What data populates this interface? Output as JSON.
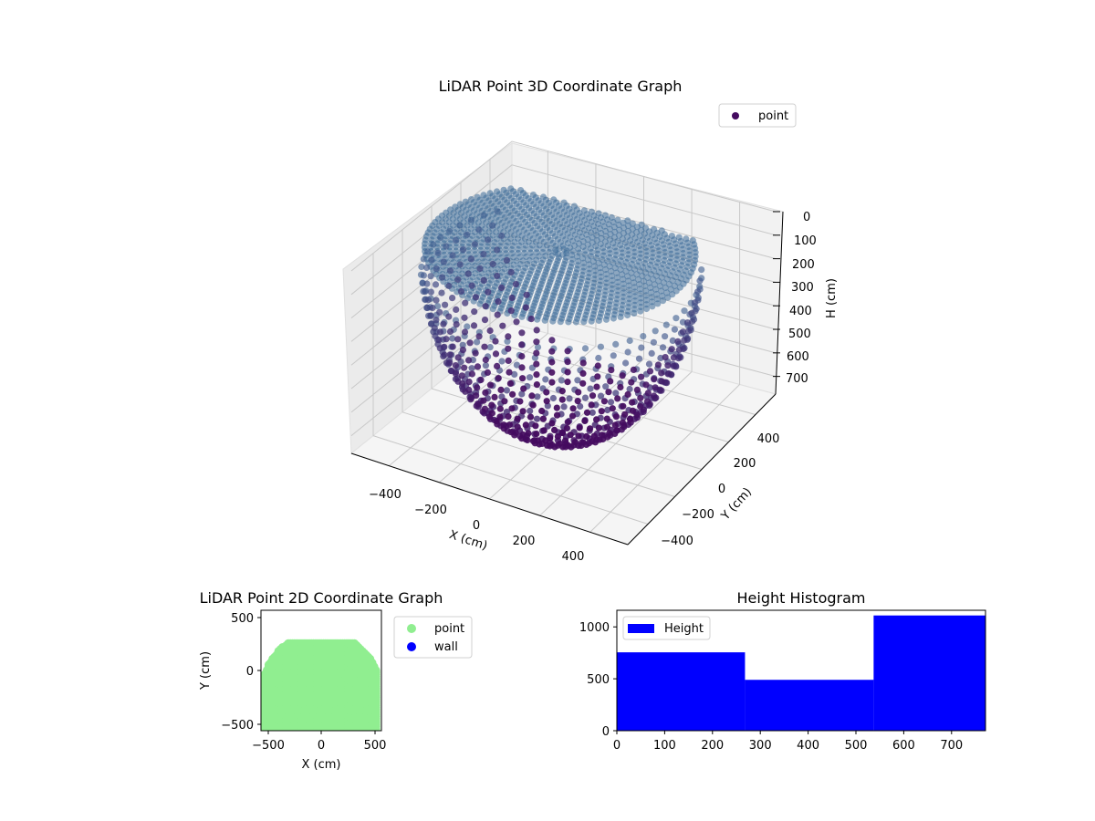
{
  "chart_data": [
    {
      "type": "scatter3d",
      "title": "LiDAR Point 3D Coordinate Graph",
      "xlabel": "X (cm)",
      "ylabel": "Y (cm)",
      "zlabel": "H (cm)",
      "xticks": [
        "−400",
        "−200",
        "0",
        "200",
        "400"
      ],
      "yticks": [
        "−400",
        "−200",
        "0",
        "200",
        "400"
      ],
      "zticks": [
        "0",
        "100",
        "200",
        "300",
        "400",
        "500",
        "600",
        "700"
      ],
      "xlim": [
        -550,
        550
      ],
      "ylim": [
        -550,
        550
      ],
      "zlim": [
        0,
        775
      ],
      "z_inverted": true,
      "legend": [
        {
          "label": "point",
          "color": "#440b5f",
          "marker": "circle"
        }
      ],
      "colormap": {
        "name": "viridis-like",
        "low_height_color": "#3a6a97",
        "high_height_color": "#440b5f"
      },
      "description": "Hemispherical dome of LiDAR points; radius ~500 cm, apex height ~775 cm, floor rings converge at center."
    },
    {
      "type": "scatter",
      "title": "LiDAR Point 2D Coordinate Graph",
      "xlabel": "X (cm)",
      "ylabel": "Y (cm)",
      "xticks": [
        "−500",
        "0",
        "500"
      ],
      "yticks": [
        "−500",
        "0",
        "500"
      ],
      "xlim": [
        -560,
        560
      ],
      "ylim": [
        -560,
        560
      ],
      "legend": [
        {
          "label": "point",
          "color": "#90ee90"
        },
        {
          "label": "wall",
          "color": "#0000ff"
        }
      ],
      "description": "Filled half-disc of light-green points spanning X -520..520, Y -520..250."
    },
    {
      "type": "bar",
      "title": "Height Histogram",
      "xticks": [
        "0",
        "100",
        "200",
        "300",
        "400",
        "500",
        "600",
        "700"
      ],
      "yticks": [
        "0",
        "500",
        "1000"
      ],
      "xlim": [
        0,
        771
      ],
      "ylim": [
        0,
        1160
      ],
      "bin_edges": [
        0,
        268,
        537,
        771
      ],
      "values": [
        755,
        490,
        1110
      ],
      "legend": [
        {
          "label": "Height",
          "color": "#0000ff"
        }
      ],
      "bar_color": "#0000ff"
    }
  ]
}
